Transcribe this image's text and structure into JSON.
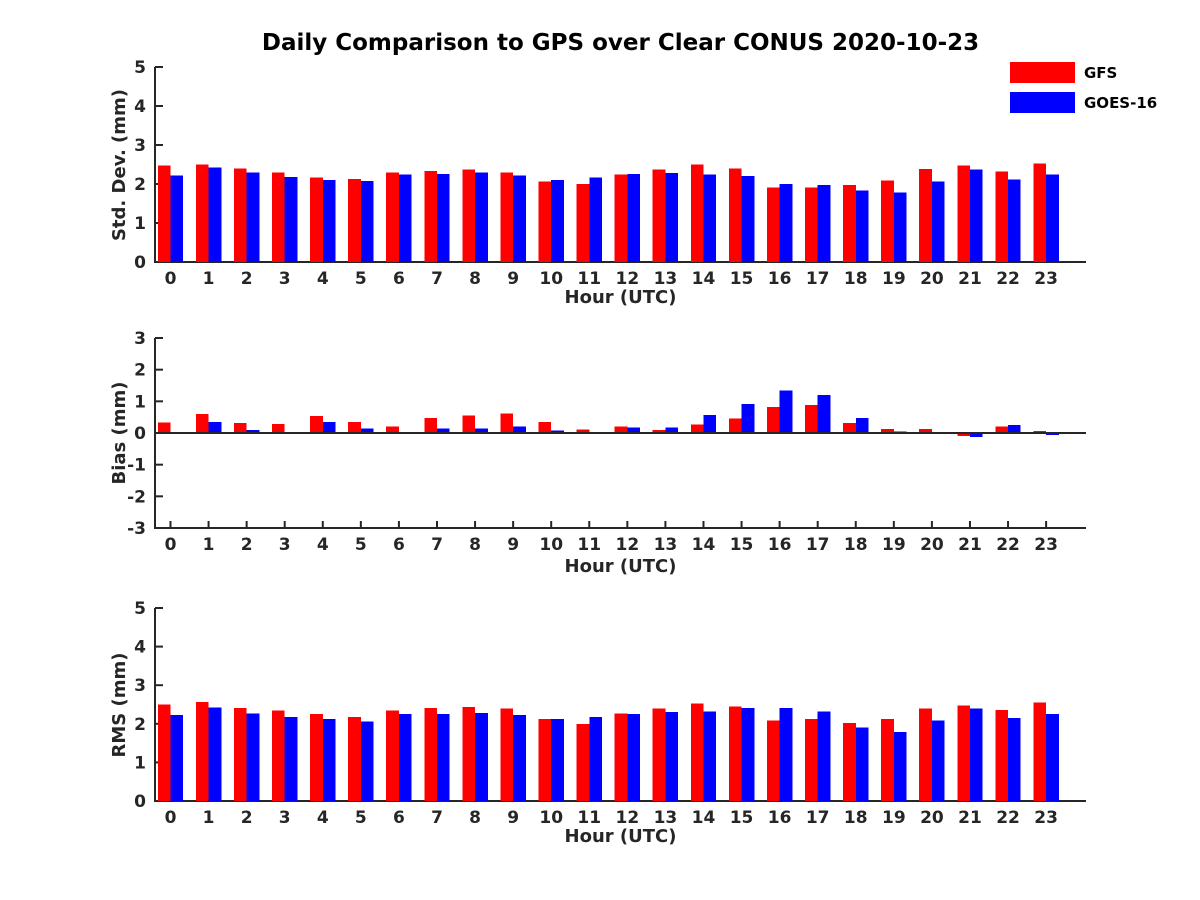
{
  "figure": {
    "title": "Daily Comparison to GPS over Clear CONUS 2020-10-23"
  },
  "legend": {
    "position": "top-right",
    "items": [
      {
        "label": "GFS",
        "color": "#ff0000"
      },
      {
        "label": "GOES-16",
        "color": "#0000ff"
      }
    ]
  },
  "colors": {
    "gfs": "#ff0000",
    "goes16": "#0000ff",
    "axis": "#262626",
    "title_text": "#000000",
    "background": "#ffffff"
  },
  "chart_data": [
    {
      "type": "bar",
      "subplot": "std-dev",
      "title": "",
      "xlabel": "Hour (UTC)",
      "ylabel": "Std. Dev. (mm)",
      "ylim": [
        0,
        5
      ],
      "yticks": [
        0,
        1,
        2,
        3,
        4,
        5
      ],
      "grid": false,
      "zero_line": false,
      "legend_position": "figure-top-right",
      "categories": [
        "0",
        "1",
        "2",
        "3",
        "4",
        "5",
        "6",
        "7",
        "8",
        "9",
        "10",
        "11",
        "12",
        "13",
        "14",
        "15",
        "16",
        "17",
        "18",
        "19",
        "20",
        "21",
        "22",
        "23"
      ],
      "series": [
        {
          "name": "GFS",
          "color": "#ff0000",
          "values": [
            2.47,
            2.5,
            2.4,
            2.3,
            2.17,
            2.13,
            2.3,
            2.33,
            2.37,
            2.3,
            2.07,
            2.0,
            2.25,
            2.37,
            2.5,
            2.4,
            1.91,
            1.91,
            1.98,
            2.09,
            2.39,
            2.47,
            2.32,
            2.52
          ]
        },
        {
          "name": "GOES-16",
          "color": "#0000ff",
          "values": [
            2.22,
            2.42,
            2.3,
            2.18,
            2.1,
            2.08,
            2.25,
            2.26,
            2.29,
            2.22,
            2.1,
            2.17,
            2.26,
            2.28,
            2.25,
            2.2,
            2.0,
            1.97,
            1.83,
            1.78,
            2.07,
            2.37,
            2.12,
            2.25
          ]
        }
      ]
    },
    {
      "type": "bar",
      "subplot": "bias",
      "title": "",
      "xlabel": "Hour (UTC)",
      "ylabel": "Bias (mm)",
      "ylim": [
        -3,
        3
      ],
      "yticks": [
        3,
        2,
        1,
        0,
        -1,
        -2,
        -3
      ],
      "grid": false,
      "zero_line": true,
      "legend_position": "none",
      "categories": [
        "0",
        "1",
        "2",
        "3",
        "4",
        "5",
        "6",
        "7",
        "8",
        "9",
        "10",
        "11",
        "12",
        "13",
        "14",
        "15",
        "16",
        "17",
        "18",
        "19",
        "20",
        "21",
        "22",
        "23"
      ],
      "series": [
        {
          "name": "GFS",
          "color": "#ff0000",
          "values": [
            0.33,
            0.6,
            0.32,
            0.28,
            0.54,
            0.35,
            0.2,
            0.48,
            0.55,
            0.61,
            0.35,
            0.11,
            0.2,
            0.1,
            0.27,
            0.46,
            0.82,
            0.88,
            0.32,
            0.13,
            0.13,
            -0.1,
            0.2,
            0.07
          ]
        },
        {
          "name": "GOES-16",
          "color": "#0000ff",
          "values": [
            0.03,
            0.35,
            0.1,
            0.03,
            0.35,
            0.14,
            -0.02,
            0.15,
            0.15,
            0.2,
            0.08,
            -0.02,
            0.17,
            0.18,
            0.57,
            0.91,
            1.35,
            1.2,
            0.47,
            0.05,
            0.02,
            -0.12,
            0.26,
            -0.07
          ]
        }
      ]
    },
    {
      "type": "bar",
      "subplot": "rms",
      "title": "",
      "xlabel": "Hour (UTC)",
      "ylabel": "RMS (mm)",
      "ylim": [
        0,
        5
      ],
      "yticks": [
        0,
        1,
        2,
        3,
        4,
        5
      ],
      "grid": false,
      "zero_line": false,
      "legend_position": "none",
      "categories": [
        "0",
        "1",
        "2",
        "3",
        "4",
        "5",
        "6",
        "7",
        "8",
        "9",
        "10",
        "11",
        "12",
        "13",
        "14",
        "15",
        "16",
        "17",
        "18",
        "19",
        "20",
        "21",
        "22",
        "23"
      ],
      "series": [
        {
          "name": "GFS",
          "color": "#ff0000",
          "values": [
            2.5,
            2.56,
            2.41,
            2.34,
            2.26,
            2.18,
            2.34,
            2.41,
            2.44,
            2.39,
            2.13,
            2.0,
            2.27,
            2.4,
            2.52,
            2.45,
            2.09,
            2.13,
            2.02,
            2.13,
            2.4,
            2.48,
            2.36,
            2.55
          ]
        },
        {
          "name": "GOES-16",
          "color": "#0000ff",
          "values": [
            2.23,
            2.42,
            2.27,
            2.18,
            2.13,
            2.06,
            2.26,
            2.26,
            2.28,
            2.23,
            2.13,
            2.18,
            2.25,
            2.3,
            2.32,
            2.41,
            2.41,
            2.32,
            1.91,
            1.79,
            2.09,
            2.4,
            2.15,
            2.26
          ]
        }
      ]
    }
  ]
}
